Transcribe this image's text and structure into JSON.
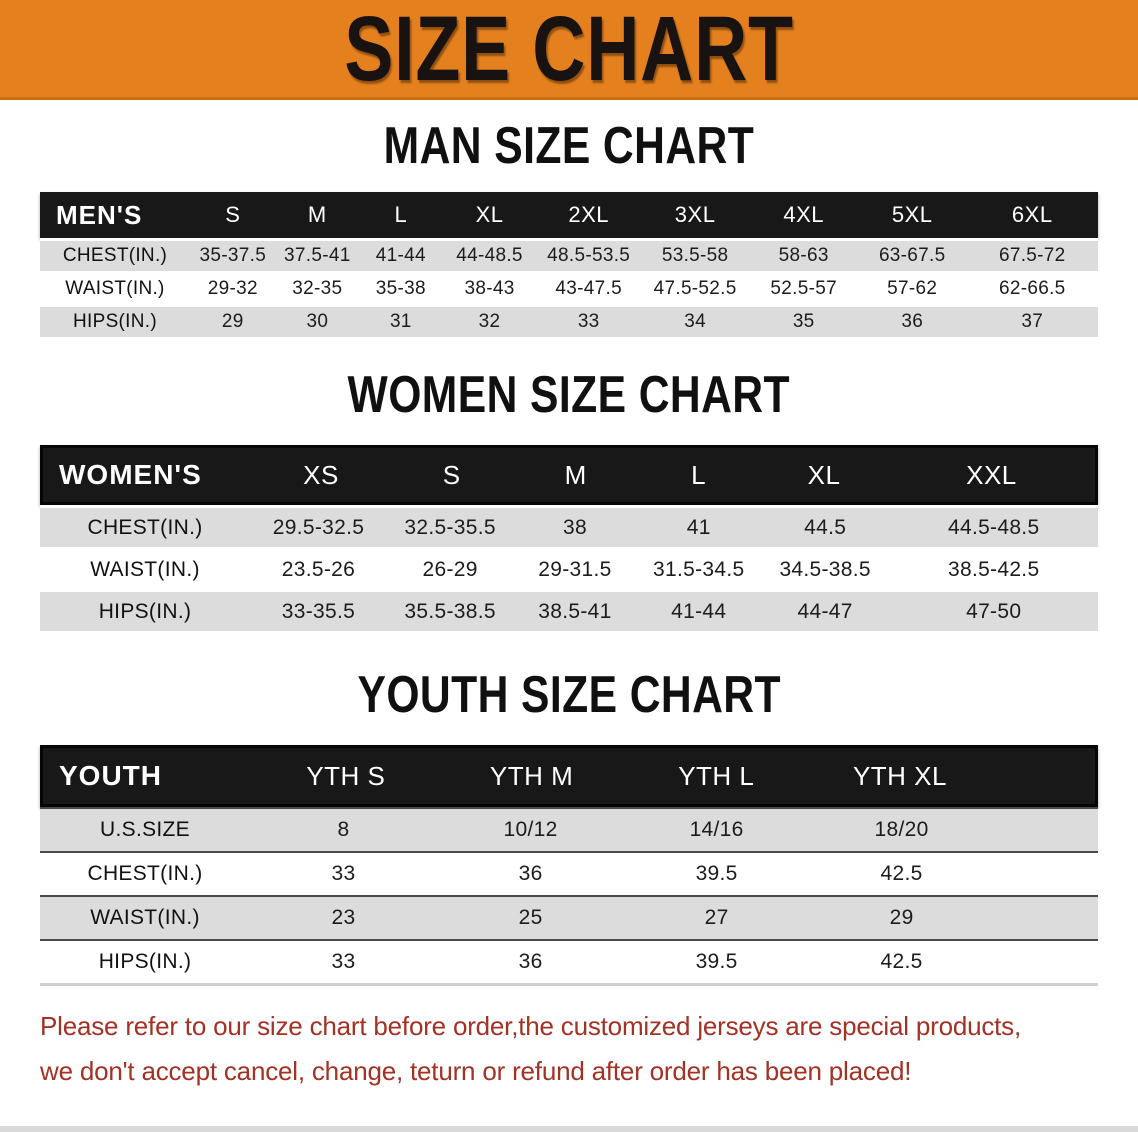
{
  "banner": {
    "title": "SIZE CHART",
    "bg": "#E5801E"
  },
  "colors": {
    "banner_bg": "#E5801E",
    "header_bar": "#181818",
    "row_shade": "#DCDCDC",
    "disclaimer_text": "#A33124"
  },
  "sections": [
    {
      "id": "men",
      "heading": "MAN SIZE CHART",
      "table": {
        "header": [
          "MEN'S",
          "S",
          "M",
          "L",
          "XL",
          "2XL",
          "3XL",
          "4XL",
          "5XL",
          "6XL"
        ],
        "rows": [
          {
            "key": "chest",
            "label": "CHEST(IN.)",
            "values": [
              "35-37.5",
              "37.5-41",
              "41-44",
              "44-48.5",
              "48.5-53.5",
              "53.5-58",
              "58-63",
              "63-67.5",
              "67.5-72"
            ]
          },
          {
            "key": "waist",
            "label": "WAIST(IN.)",
            "values": [
              "29-32",
              "32-35",
              "35-38",
              "38-43",
              "43-47.5",
              "47.5-52.5",
              "52.5-57",
              "57-62",
              "62-66.5"
            ]
          },
          {
            "key": "hips",
            "label": "HIPS(IN.)",
            "values": [
              "29",
              "30",
              "31",
              "32",
              "33",
              "34",
              "35",
              "36",
              "37"
            ]
          }
        ]
      }
    },
    {
      "id": "women",
      "heading": "WOMEN SIZE CHART",
      "table": {
        "header": [
          "WOMEN'S",
          "XS",
          "S",
          "M",
          "L",
          "XL",
          "XXL"
        ],
        "rows": [
          {
            "key": "chest",
            "label": "CHEST(IN.)",
            "values": [
              "29.5-32.5",
              "32.5-35.5",
              "38",
              "41",
              "44.5",
              "44.5-48.5"
            ]
          },
          {
            "key": "waist",
            "label": "WAIST(IN.)",
            "values": [
              "23.5-26",
              "26-29",
              "29-31.5",
              "31.5-34.5",
              "34.5-38.5",
              "38.5-42.5"
            ]
          },
          {
            "key": "hips",
            "label": "HIPS(IN.)",
            "values": [
              "33-35.5",
              "35.5-38.5",
              "38.5-41",
              "41-44",
              "44-47",
              "47-50"
            ]
          }
        ]
      }
    },
    {
      "id": "youth",
      "heading": "YOUTH SIZE CHART",
      "table": {
        "header": [
          "YOUTH",
          "YTH S",
          "YTH M",
          "YTH L",
          "YTH XL"
        ],
        "rows": [
          {
            "key": "us-size",
            "label": "U.S.SIZE",
            "values": [
              "8",
              "10/12",
              "14/16",
              "18/20"
            ]
          },
          {
            "key": "chest",
            "label": "CHEST(IN.)",
            "values": [
              "33",
              "36",
              "39.5",
              "42.5"
            ]
          },
          {
            "key": "waist",
            "label": "WAIST(IN.)",
            "values": [
              "23",
              "25",
              "27",
              "29"
            ]
          },
          {
            "key": "hips",
            "label": "HIPS(IN.)",
            "values": [
              "33",
              "36",
              "39.5",
              "42.5"
            ]
          }
        ]
      }
    }
  ],
  "disclaimer": {
    "line1": "Please refer to our size chart before order,the customized jerseys are special products,",
    "line2": "we don't accept cancel, change, teturn or refund after order has been placed!",
    "color": "#A33124"
  }
}
